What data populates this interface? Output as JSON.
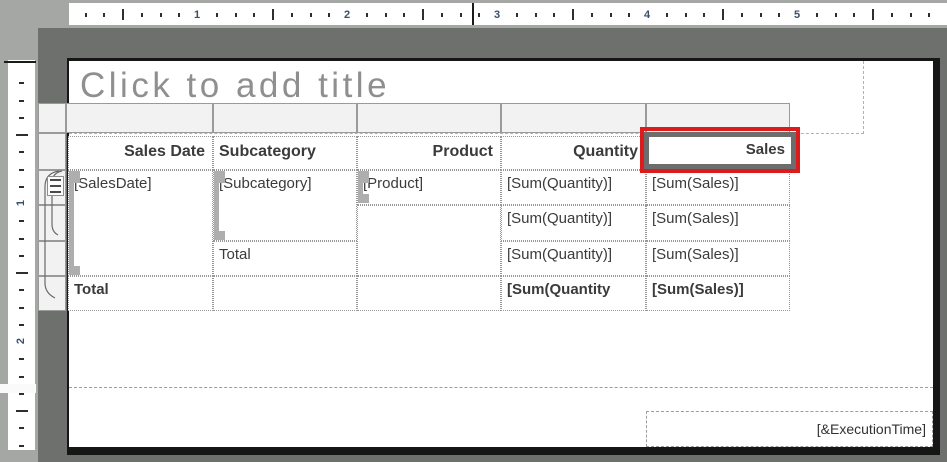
{
  "title_placeholder": "Click to add title",
  "rulers": {
    "horizontal": {
      "numbers": [
        "1",
        "2",
        "3",
        "4",
        "5"
      ]
    },
    "vertical": {
      "numbers": [
        "1",
        "2"
      ]
    }
  },
  "tablix": {
    "headers": {
      "sales_date": "Sales Date",
      "subcategory": "Subcategory",
      "product": "Product",
      "quantity": "Quantity",
      "sales": "Sales"
    },
    "detail_row": {
      "sales_date": "[SalesDate]",
      "subcategory": "[Subcategory]",
      "product": "[Product]",
      "quantity": "[Sum(Quantity)]",
      "sales": "[Sum(Sales)]"
    },
    "second_row": {
      "quantity": "[Sum(Quantity)]",
      "sales": "[Sum(Sales)]"
    },
    "subcategory_total_row": {
      "label": "Total",
      "quantity": "[Sum(Quantity)]",
      "sales": "[Sum(Sales)]"
    },
    "grand_total_row": {
      "label": "Total",
      "quantity": "[Sum(Quantity",
      "sales": "[Sum(Sales)]"
    }
  },
  "page_footer": {
    "execution_time": "[&ExecutionTime]"
  },
  "selection": {
    "selected_cell": "Sales"
  },
  "colors": {
    "annotation_red": "#dc1c1c",
    "selection_border": "#6d6d6d",
    "design_background": "#6d706d",
    "workspace_silver": "#a4a7a4"
  }
}
